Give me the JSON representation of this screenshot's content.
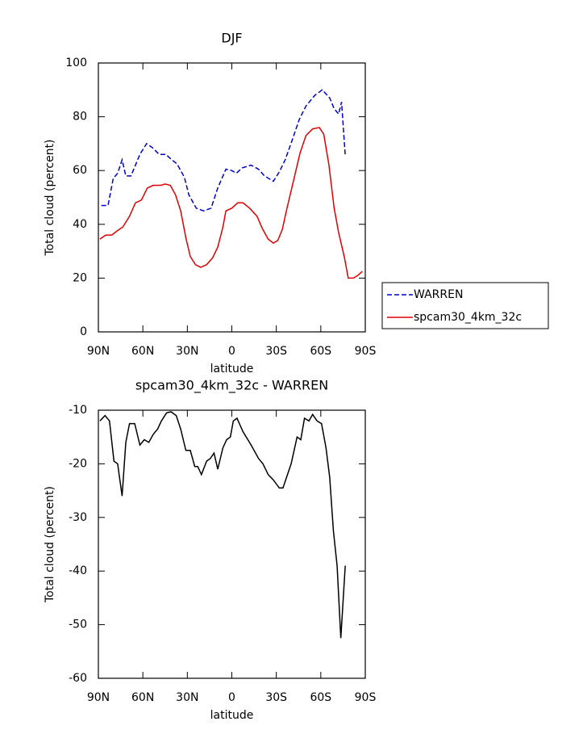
{
  "chart_data": [
    {
      "type": "line",
      "title": "DJF",
      "xlabel": "latitude",
      "ylabel": "Total cloud (percent)",
      "xlim": [
        90,
        -90
      ],
      "ylim": [
        0,
        100
      ],
      "xticks": [
        {
          "value": 90,
          "label": "90N"
        },
        {
          "value": 60,
          "label": "60N"
        },
        {
          "value": 30,
          "label": "30N"
        },
        0,
        {
          "value": -30,
          "label": "30S"
        },
        {
          "value": -60,
          "label": "60S"
        },
        {
          "value": -90,
          "label": "90S"
        }
      ],
      "yticks": [
        0,
        20,
        40,
        60,
        80,
        100
      ],
      "legend": "outside-right",
      "series": [
        {
          "name": "WARREN",
          "color": "#0000cc",
          "dash": true,
          "x": [
            88,
            83.5,
            80,
            77,
            74,
            71.5,
            68,
            65,
            62,
            57.5,
            53.5,
            49,
            44.5,
            40.5,
            37,
            32,
            29,
            24,
            19,
            14,
            9.5,
            4,
            0,
            -3,
            -7,
            -13,
            -18,
            -22,
            -28,
            -32,
            -36,
            -40.5,
            -45.5,
            -50,
            -56,
            -61,
            -66,
            -69,
            -72,
            -74,
            -76.5
          ],
          "values": [
            47,
            47,
            57,
            59,
            64,
            58,
            58,
            62,
            66,
            70,
            68.5,
            66,
            66,
            64,
            62.5,
            57.5,
            51,
            46,
            45,
            46,
            53.5,
            60.5,
            60,
            59,
            61,
            62,
            60.5,
            58,
            56,
            59.5,
            64,
            71,
            79,
            84,
            88,
            90,
            87,
            83,
            81,
            85.5,
            65.5
          ]
        },
        {
          "name": "spcam30_4km_32c",
          "color": "#e00000",
          "dash": false,
          "x": [
            89,
            85,
            81,
            77.5,
            73.5,
            69,
            65,
            61,
            57,
            53,
            48,
            45,
            41.5,
            38,
            34.5,
            31,
            28,
            24.5,
            21,
            17,
            13,
            9.5,
            6,
            4,
            0,
            -4,
            -7.5,
            -12,
            -17,
            -20.5,
            -24.5,
            -28,
            -31,
            -34,
            -37,
            -41.5,
            -46,
            -50,
            -54.5,
            -59,
            -62,
            -65.5,
            -69,
            -72,
            -76,
            -78.5,
            -82,
            -85,
            -88
          ],
          "values": [
            34.5,
            36,
            36,
            37.5,
            39,
            43,
            48,
            49,
            53.5,
            54.5,
            54.5,
            55,
            54.5,
            51,
            45,
            35,
            28,
            25,
            24,
            25,
            27.5,
            31.5,
            39,
            45,
            46,
            48,
            48,
            46,
            43,
            38.5,
            34.5,
            33,
            34,
            38,
            45.5,
            56,
            66.5,
            73,
            75.5,
            76,
            73.5,
            62,
            46,
            37,
            27.5,
            20,
            20,
            21,
            22.5
          ]
        }
      ]
    },
    {
      "type": "line",
      "title": "spcam30_4km_32c - WARREN",
      "xlabel": "latitude",
      "ylabel": "Total cloud (percent)",
      "xlim": [
        90,
        -90
      ],
      "ylim": [
        -60,
        -10
      ],
      "xticks": [
        {
          "value": 90,
          "label": "90N"
        },
        {
          "value": 60,
          "label": "60N"
        },
        {
          "value": 30,
          "label": "30N"
        },
        0,
        {
          "value": -30,
          "label": "30S"
        },
        {
          "value": -60,
          "label": "60S"
        },
        {
          "value": -90,
          "label": "90S"
        }
      ],
      "yticks": [
        -60,
        -50,
        -40,
        -30,
        -20,
        -10
      ],
      "series": [
        {
          "color": "#000000",
          "dash": false,
          "x": [
            89,
            85.5,
            82.5,
            79.5,
            77,
            74,
            71.5,
            69,
            65.5,
            62,
            59,
            56,
            53,
            50,
            47.5,
            44,
            41,
            37.5,
            34.5,
            31,
            28,
            25,
            23,
            20.5,
            17,
            14.5,
            12,
            9.5,
            6,
            3.5,
            1,
            -1,
            -3.5,
            -7.5,
            -13,
            -18,
            -21,
            -24.5,
            -28,
            -32,
            -34.5,
            -40,
            -44,
            -46.5,
            -49,
            -52,
            -54.5,
            -57.5,
            -60.5,
            -63.5,
            -66,
            -68.5,
            -71,
            -73.5,
            -76.5
          ],
          "values": [
            -12,
            -11,
            -12,
            -19.5,
            -20,
            -26,
            -16,
            -12.5,
            -12.5,
            -16.5,
            -15.5,
            -16,
            -14.5,
            -13.5,
            -12,
            -10.5,
            -10.3,
            -11,
            -13.5,
            -17.5,
            -17.5,
            -20.5,
            -20.5,
            -22,
            -19.5,
            -19,
            -18,
            -21,
            -17,
            -15.5,
            -15,
            -12,
            -11.5,
            -14,
            -16.5,
            -19,
            -20,
            -22,
            -23,
            -24.5,
            -24.5,
            -20,
            -15,
            -15.5,
            -11.5,
            -12,
            -10.8,
            -12,
            -12.5,
            -17,
            -22.5,
            -32.5,
            -39,
            -52.5,
            -39
          ]
        }
      ]
    }
  ]
}
